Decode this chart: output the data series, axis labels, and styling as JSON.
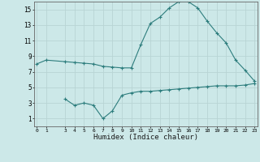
{
  "xlabel": "Humidex (Indice chaleur)",
  "x_upper": [
    0,
    1,
    3,
    4,
    5,
    6,
    7,
    8,
    9,
    10,
    11,
    12,
    13,
    14,
    15,
    16,
    17,
    18,
    19,
    20,
    21,
    22,
    23
  ],
  "y_upper": [
    8.0,
    8.5,
    8.3,
    8.2,
    8.1,
    8.0,
    7.7,
    7.6,
    7.5,
    7.5,
    10.5,
    13.2,
    14.0,
    15.2,
    16.0,
    16.0,
    15.2,
    13.5,
    12.0,
    10.7,
    8.5,
    7.2,
    5.8
  ],
  "x_lower": [
    3,
    4,
    5,
    6,
    7,
    8,
    9,
    10,
    11,
    12,
    13,
    14,
    15,
    16,
    17,
    18,
    19,
    20,
    21,
    22,
    23
  ],
  "y_lower": [
    3.5,
    2.7,
    3.0,
    2.7,
    1.0,
    2.0,
    4.0,
    4.3,
    4.5,
    4.5,
    4.6,
    4.7,
    4.8,
    4.9,
    5.0,
    5.1,
    5.2,
    5.2,
    5.2,
    5.3,
    5.5
  ],
  "line_color": "#2d7d7d",
  "bg_color": "#cce8e8",
  "grid_color": "#b8d4d4",
  "ylim": [
    0,
    16
  ],
  "yticks": [
    1,
    3,
    5,
    7,
    9,
    11,
    13,
    15
  ],
  "xticks": [
    0,
    1,
    3,
    4,
    5,
    6,
    7,
    8,
    9,
    10,
    11,
    12,
    13,
    14,
    15,
    16,
    17,
    18,
    19,
    20,
    21,
    22,
    23
  ],
  "xlim": [
    -0.3,
    23.3
  ]
}
